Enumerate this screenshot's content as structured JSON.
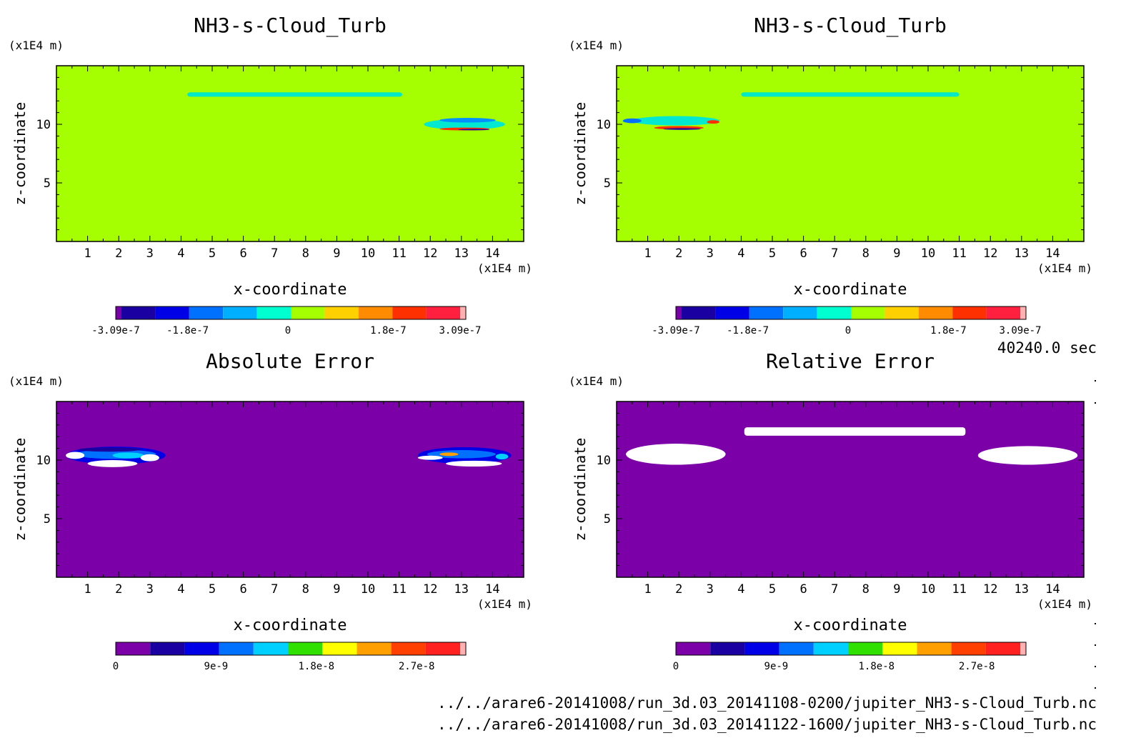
{
  "time_label": "40240.0 sec",
  "file_paths": [
    "../../arare6-20141008/run_3d.03_20141108-0200/jupiter_NH3-s-Cloud_Turb.nc",
    "../../arare6-20141008/run_3d.03_20141122-1600/jupiter_NH3-s-Cloud_Turb.nc"
  ],
  "colors": {
    "green_field": "#a6ff00",
    "purple_field": "#7c00a8",
    "scale_a": [
      "#7c00a8",
      "#1a00a0",
      "#0000e6",
      "#0070ff",
      "#00b0ff",
      "#00ffd0",
      "#a6ff00",
      "#ffd000",
      "#ff8c00",
      "#ff3000",
      "#ff2040",
      "#ffb0b0"
    ],
    "scale_b": [
      "#7c00a8",
      "#1a00a0",
      "#0000e6",
      "#0070ff",
      "#00d0ff",
      "#30e000",
      "#ffff00",
      "#ffa000",
      "#ff4000",
      "#ff2020",
      "#ffb0b0"
    ]
  },
  "chart_data": [
    {
      "type": "heatmap",
      "title": "NH3-s-Cloud_Turb",
      "xlabel": "x-coordinate",
      "ylabel": "z-coordinate",
      "x_unit": "(×1E4 m)",
      "y_unit": "(×1E4 m)",
      "xlim": [
        0,
        15
      ],
      "ylim": [
        0,
        15
      ],
      "x_ticks": [
        "1",
        "2",
        "3",
        "4",
        "5",
        "6",
        "7",
        "8",
        "9",
        "10",
        "11",
        "12",
        "13",
        "14"
      ],
      "y_ticks": [
        "5",
        "10"
      ],
      "colorbar_ticks": [
        "-3.09e-7",
        "-1.8e-7",
        "0",
        "1.8e-7",
        "3.09e-7"
      ],
      "colorbar_range": [
        -3.09e-07,
        3.09e-07
      ],
      "background_value": 0
    },
    {
      "type": "heatmap",
      "title": "NH3-s-Cloud_Turb",
      "xlabel": "x-coordinate",
      "ylabel": "z-coordinate",
      "x_unit": "(×1E4 m)",
      "y_unit": "(×1E4 m)",
      "xlim": [
        0,
        15
      ],
      "ylim": [
        0,
        15
      ],
      "x_ticks": [
        "1",
        "2",
        "3",
        "4",
        "5",
        "6",
        "7",
        "8",
        "9",
        "10",
        "11",
        "12",
        "13",
        "14"
      ],
      "y_ticks": [
        "5",
        "10"
      ],
      "colorbar_ticks": [
        "-3.09e-7",
        "-1.8e-7",
        "0",
        "1.8e-7",
        "3.09e-7"
      ],
      "colorbar_range": [
        -3.09e-07,
        3.09e-07
      ],
      "background_value": 0
    },
    {
      "type": "heatmap",
      "title": "Absolute Error",
      "xlabel": "x-coordinate",
      "ylabel": "z-coordinate",
      "x_unit": "(×1E4 m)",
      "y_unit": "(×1E4 m)",
      "xlim": [
        0,
        15
      ],
      "ylim": [
        0,
        15
      ],
      "x_ticks": [
        "1",
        "2",
        "3",
        "4",
        "5",
        "6",
        "7",
        "8",
        "9",
        "10",
        "11",
        "12",
        "13",
        "14"
      ],
      "y_ticks": [
        "5",
        "10"
      ],
      "colorbar_ticks": [
        "0",
        "9e-9",
        "1.8e-8",
        "2.7e-8"
      ],
      "colorbar_range": [
        0,
        3.09e-08
      ],
      "background_value": 0
    },
    {
      "type": "heatmap",
      "title": "Relative Error",
      "xlabel": "x-coordinate",
      "ylabel": "z-coordinate",
      "x_unit": "(×1E4 m)",
      "y_unit": "(×1E4 m)",
      "xlim": [
        0,
        15
      ],
      "ylim": [
        0,
        15
      ],
      "x_ticks": [
        "1",
        "2",
        "3",
        "4",
        "5",
        "6",
        "7",
        "8",
        "9",
        "10",
        "11",
        "12",
        "13",
        "14"
      ],
      "y_ticks": [
        "5",
        "10"
      ],
      "colorbar_ticks": [
        "0",
        "9e-9",
        "1.8e-8",
        "2.7e-8"
      ],
      "colorbar_range": [
        0,
        3.09e-08
      ],
      "background_value": 0
    }
  ]
}
